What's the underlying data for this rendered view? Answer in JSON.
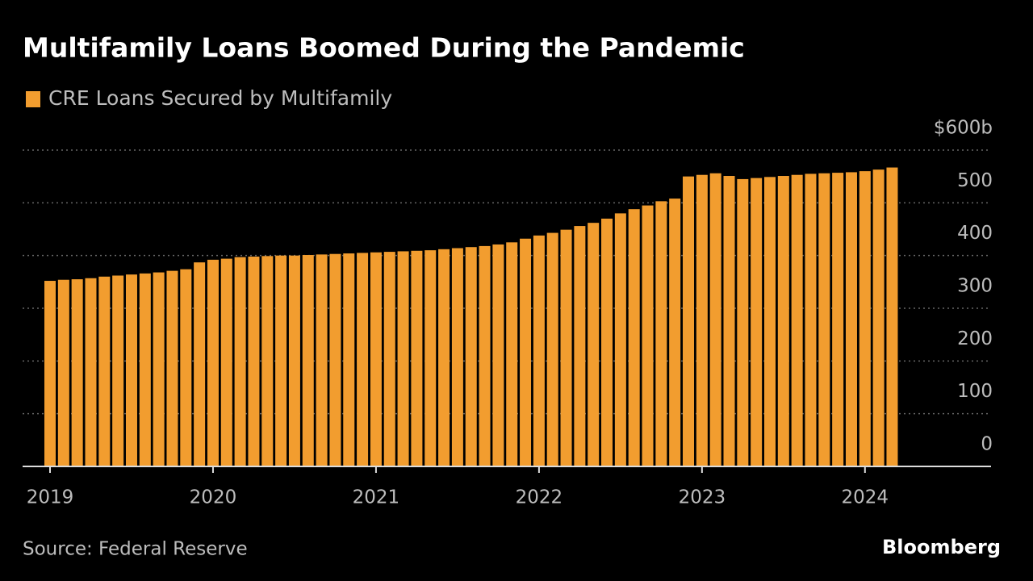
{
  "chart_data": {
    "type": "bar",
    "title": "Multifamily Loans Boomed During the Pandemic",
    "series": [
      {
        "name": "CRE Loans Secured by Multifamily",
        "color": "#f29d2f",
        "values": [
          352,
          354,
          355,
          357,
          360,
          362,
          364,
          366,
          368,
          371,
          374,
          387,
          392,
          394,
          397,
          398,
          399,
          400,
          400,
          401,
          402,
          403,
          404,
          405,
          406,
          407,
          408,
          409,
          410,
          412,
          414,
          416,
          418,
          421,
          425,
          432,
          438,
          443,
          449,
          456,
          462,
          470,
          480,
          488,
          495,
          503,
          508,
          550,
          553,
          556,
          551,
          545,
          547,
          549,
          551,
          553,
          555,
          556,
          557,
          558,
          560,
          563,
          567
        ]
      }
    ],
    "categories": [
      "2019",
      null,
      null,
      null,
      null,
      null,
      null,
      null,
      null,
      null,
      null,
      null,
      "2020",
      null,
      null,
      null,
      null,
      null,
      null,
      null,
      null,
      null,
      null,
      null,
      "2021",
      null,
      null,
      null,
      null,
      null,
      null,
      null,
      null,
      null,
      null,
      null,
      "2022",
      null,
      null,
      null,
      null,
      null,
      null,
      null,
      null,
      null,
      null,
      null,
      "2023",
      null,
      null,
      null,
      null,
      null,
      null,
      null,
      null,
      null,
      null,
      null,
      "2024",
      null,
      null
    ],
    "ylim": [
      0,
      600
    ],
    "yticks": [
      0,
      100,
      200,
      300,
      400,
      500,
      {
        "value": 600,
        "label": "$600b"
      }
    ],
    "grid": true,
    "source": "Source: Federal Reserve",
    "brand": "Bloomberg"
  }
}
